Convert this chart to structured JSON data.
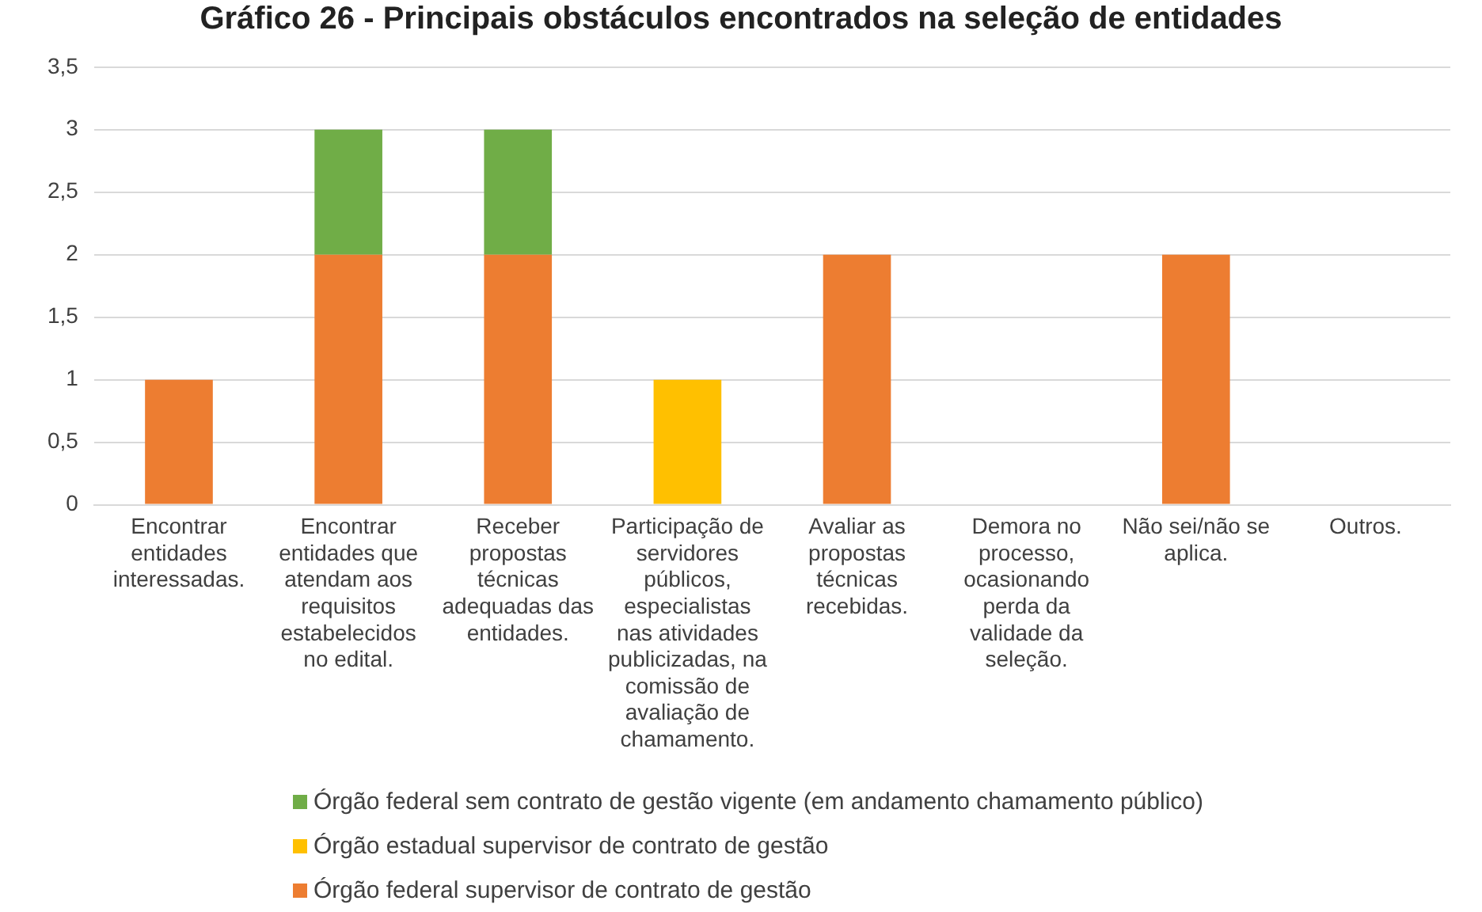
{
  "chart_data": {
    "type": "bar",
    "title": "Gráfico 26 - Principais obstáculos encontrados na seleção de entidades",
    "stacked": true,
    "categories": [
      "Encontrar entidades interessadas.",
      "Encontrar entidades que atendam aos requisitos estabelecidos no edital.",
      "Receber propostas técnicas adequadas das entidades.",
      "Participação de servidores públicos, especialistas nas atividades publicizadas, na comissão de avaliação de chamamento.",
      "Avaliar as propostas técnicas recebidas.",
      "Demora no processo, ocasionando perda da validade da seleção.",
      "Não sei/não se aplica.",
      "Outros."
    ],
    "series": [
      {
        "name": "Órgão federal supervisor de contrato de gestão",
        "color": "#ed7d31",
        "values": [
          1,
          2,
          2,
          null,
          2,
          null,
          2,
          null
        ]
      },
      {
        "name": "Órgão estadual supervisor de contrato de gestão",
        "color": "#ffc000",
        "values": [
          null,
          null,
          null,
          1,
          null,
          null,
          null,
          null
        ]
      },
      {
        "name": "Órgão federal sem contrato de gestão vigente (em andamento chamamento público)",
        "color": "#70ad47",
        "values": [
          null,
          1,
          1,
          null,
          null,
          null,
          null,
          null
        ]
      }
    ],
    "ylim": [
      0,
      3.5
    ],
    "yticks": [
      0,
      {
        "value": 0.5,
        "label": "0,5"
      },
      1,
      {
        "value": 1.5,
        "label": "1,5"
      },
      2,
      {
        "value": 2.5,
        "label": "2,5"
      },
      3,
      {
        "value": 3.5,
        "label": "3,5"
      }
    ],
    "grid": "y",
    "legend": "bottom"
  }
}
